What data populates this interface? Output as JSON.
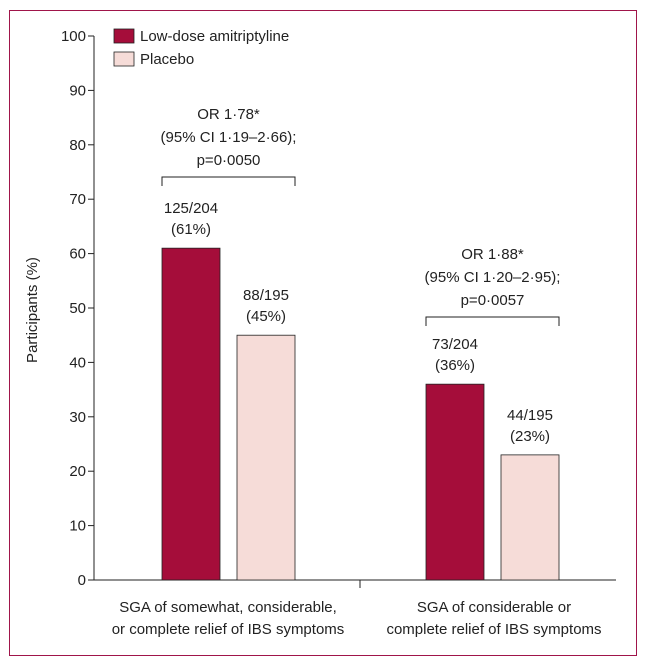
{
  "chart_data": {
    "type": "bar",
    "ylabel": "Participants (%)",
    "ylim": [
      0,
      100
    ],
    "yticks": [
      0,
      10,
      20,
      30,
      40,
      50,
      60,
      70,
      80,
      90,
      100
    ],
    "categories": [
      [
        "SGA of somewhat, considerable,",
        "or complete relief of IBS symptoms"
      ],
      [
        "SGA of considerable or",
        "complete relief of IBS symptoms"
      ]
    ],
    "series": [
      {
        "name": "Low-dose amitriptyline",
        "color": "#a50d3a",
        "values": [
          61,
          36
        ],
        "labels": [
          [
            "125/204",
            "(61%)"
          ],
          [
            "73/204",
            "(36%)"
          ]
        ]
      },
      {
        "name": "Placebo",
        "color": "#f6dcd8",
        "values": [
          45,
          23
        ],
        "labels": [
          [
            "88/195",
            "(45%)"
          ],
          [
            "44/195",
            "(23%)"
          ]
        ]
      }
    ],
    "annotations": [
      [
        "OR 1·78*",
        "(95% CI 1·19–2·66);",
        "p=0·0050"
      ],
      [
        "OR 1·88*",
        "(95% CI 1·20–2·95);",
        "p=0·0057"
      ]
    ],
    "legend": "top-left",
    "grid": false
  }
}
